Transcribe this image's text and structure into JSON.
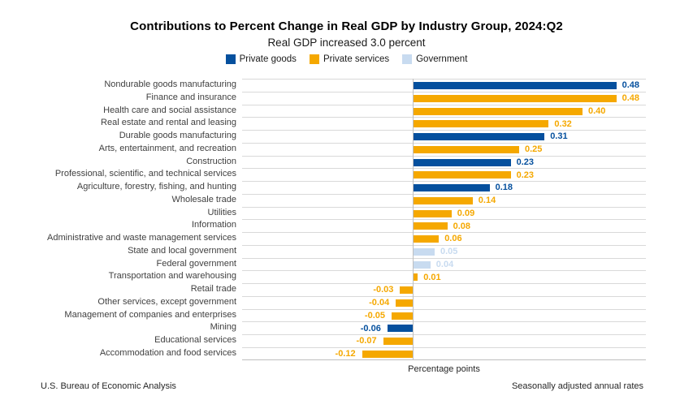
{
  "header": {
    "title": "Contributions to Percent Change in Real GDP by Industry Group, 2024:Q2",
    "subtitle": "Real GDP increased 3.0 percent"
  },
  "legend": {
    "items": [
      {
        "label": "Private goods",
        "key": "private_goods"
      },
      {
        "label": "Private services",
        "key": "private_services"
      },
      {
        "label": "Government",
        "key": "government"
      }
    ]
  },
  "colors": {
    "private_goods": "#05509e",
    "private_services": "#f5a800",
    "government": "#c8dbf0",
    "gridline": "#d9d9d9",
    "axis": "#bfbfbf"
  },
  "chart_data": {
    "type": "bar",
    "orientation": "horizontal",
    "title": "Contributions to Percent Change in Real GDP by Industry Group, 2024:Q2",
    "subtitle": "Real GDP increased 3.0 percent",
    "xlabel": "Percentage points",
    "xlim": [
      -0.4,
      0.55
    ],
    "grid": "row-separators",
    "legend_position": "top",
    "legend_entries": [
      "Private goods",
      "Private services",
      "Government"
    ],
    "value_label_decimals": 2,
    "categories": [
      "Nondurable goods manufacturing",
      "Finance and insurance",
      "Health care and social assistance",
      "Real estate and rental and leasing",
      "Durable goods manufacturing",
      "Arts, entertainment, and recreation",
      "Construction",
      "Professional, scientific, and technical services",
      "Agriculture, forestry, fishing, and hunting",
      "Wholesale trade",
      "Utilities",
      "Information",
      "Administrative and waste management services",
      "State and local government",
      "Federal government",
      "Transportation and warehousing",
      "Retail trade",
      "Other services, except government",
      "Management of companies and enterprises",
      "Mining",
      "Educational services",
      "Accommodation and food services"
    ],
    "values": [
      0.48,
      0.48,
      0.4,
      0.32,
      0.31,
      0.25,
      0.23,
      0.23,
      0.18,
      0.14,
      0.09,
      0.08,
      0.06,
      0.05,
      0.04,
      0.01,
      -0.03,
      -0.04,
      -0.05,
      -0.06,
      -0.07,
      -0.12
    ],
    "groups": [
      "private_goods",
      "private_services",
      "private_services",
      "private_services",
      "private_goods",
      "private_services",
      "private_goods",
      "private_services",
      "private_goods",
      "private_services",
      "private_services",
      "private_services",
      "private_services",
      "government",
      "government",
      "private_services",
      "private_services",
      "private_services",
      "private_services",
      "private_goods",
      "private_services",
      "private_services"
    ]
  },
  "footer": {
    "left": "U.S. Bureau of Economic Analysis",
    "right": "Seasonally adjusted annual rates"
  }
}
